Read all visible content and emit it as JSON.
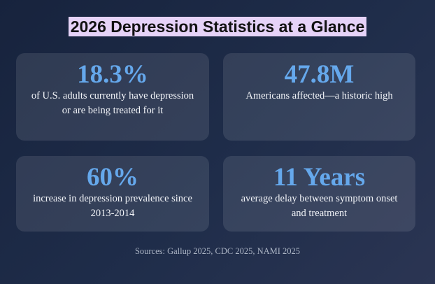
{
  "title": "2026 Depression Statistics at a Glance",
  "cards": [
    {
      "stat": "18.3%",
      "description": "of U.S. adults currently have depression or are being treated for it"
    },
    {
      "stat": "47.8M",
      "description": "Americans affected—a historic high"
    },
    {
      "stat": "60%",
      "description": "increase in depression prevalence since 2013-2014"
    },
    {
      "stat": "11 Years",
      "description": "average delay between symptom onset and treatment"
    }
  ],
  "sources": "Sources: Gallup 2025, CDC 2025, NAMI 2025",
  "colors": {
    "background": "#1f2d4a",
    "title_highlight": "#e6d3f8",
    "stat_accent": "#65a8ec"
  }
}
